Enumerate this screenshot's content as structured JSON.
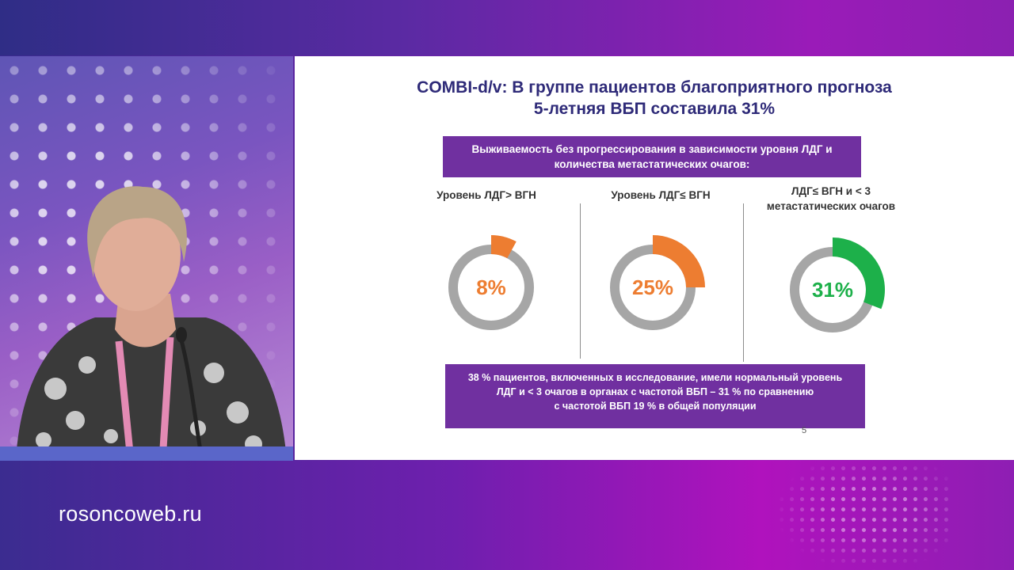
{
  "site": {
    "url": "rosoncoweb.ru"
  },
  "slide": {
    "title_line1": "COMBI-d/v: В группе пациентов благоприятного прогноза",
    "title_line2": "5-летняя ВБП составила 31%",
    "header_line1": "Выживаемость без прогрессирования в зависимости уровня ЛДГ и",
    "header_line2": "количества метастатических очагов:",
    "columns": [
      {
        "label_line1": "Уровень ЛДГ> ВГН",
        "label_line2": "",
        "value_text": "8%",
        "fraction": 0.08,
        "color": "#ed7d31"
      },
      {
        "label_line1": "Уровень ЛДГ≤ ВГН",
        "label_line2": "",
        "value_text": "25%",
        "fraction": 0.25,
        "color": "#ed7d31"
      },
      {
        "label_line1": "ЛДГ≤ ВГН и < 3",
        "label_line2": "метастатических очагов",
        "value_text": "31%",
        "fraction": 0.31,
        "color": "#1db04a"
      }
    ],
    "footer_line1": "38 % пациентов, включенных в исследование, имели нормальный уровень",
    "footer_line2": "ЛДГ и < 3 очагов в органах с частотой ВБП – 31 % по сравнению",
    "footer_line3": "с частотой ВБП 19 % в общей популяции",
    "page_number": "5",
    "colors": {
      "title": "#2e2a78",
      "box": "#7030a0",
      "ring": "#a6a6a6"
    }
  }
}
